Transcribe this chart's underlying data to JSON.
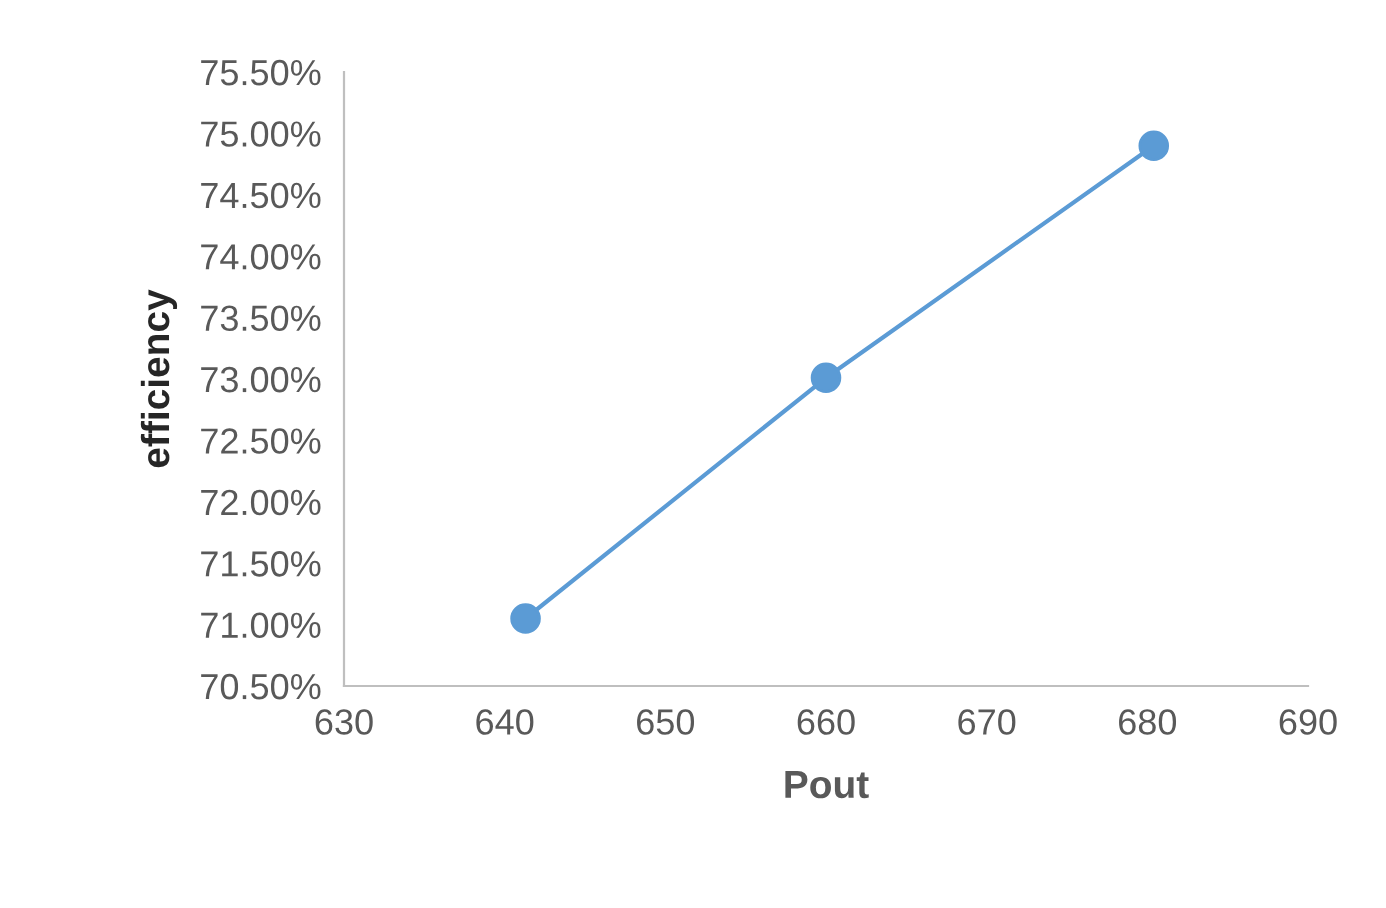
{
  "chart_data": {
    "type": "line",
    "xlabel": "Pout",
    "ylabel": "efficiency",
    "x": [
      641.3,
      660.0,
      680.4
    ],
    "series": [
      {
        "color": "#5b9bd5",
        "values": [
          71.05,
          73.01,
          74.9
        ]
      }
    ],
    "xlim": [
      630,
      690
    ],
    "xticks": [
      630,
      640,
      650,
      660,
      670,
      680,
      690
    ],
    "ylim": [
      70.5,
      75.5
    ],
    "yticks": [
      {
        "value": 70.5,
        "label": "70.50%"
      },
      {
        "value": 71.0,
        "label": "71.00%"
      },
      {
        "value": 71.5,
        "label": "71.50%"
      },
      {
        "value": 72.0,
        "label": "72.00%"
      },
      {
        "value": 72.5,
        "label": "72.50%"
      },
      {
        "value": 73.0,
        "label": "73.00%"
      },
      {
        "value": 73.5,
        "label": "73.50%"
      },
      {
        "value": 74.0,
        "label": "74.00%"
      },
      {
        "value": 74.5,
        "label": "74.50%"
      },
      {
        "value": 75.0,
        "label": "75.00%"
      },
      {
        "value": 75.5,
        "label": "75.50%"
      }
    ],
    "grid": false,
    "legend": false,
    "marker": "circle",
    "line_style": "solid"
  }
}
